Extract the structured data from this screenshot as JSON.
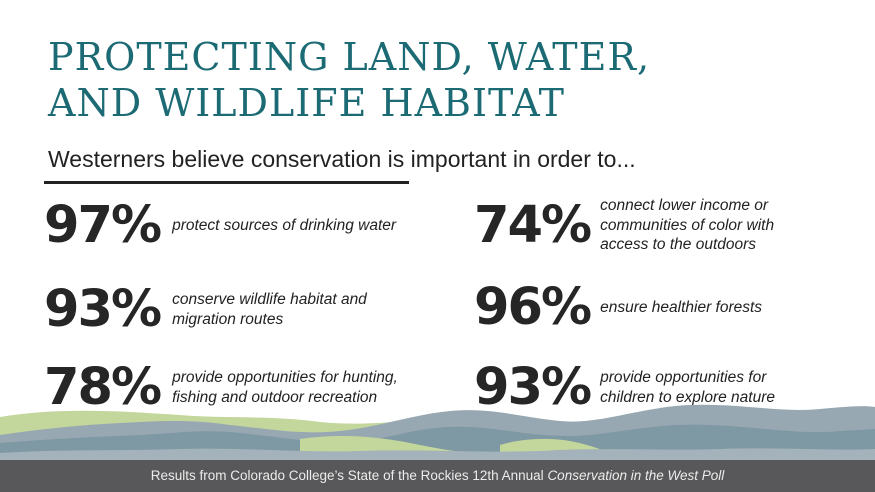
{
  "title": {
    "line1": "PROTECTING LAND, WATER,",
    "line2": "AND WILDLIFE HABITAT"
  },
  "subtitle": "Westerners believe conservation is important in order to...",
  "stats": [
    {
      "percent": "97%",
      "lines": [
        "protect sources of drinking water"
      ]
    },
    {
      "percent": "93%",
      "lines": [
        "conserve wildlife habitat and",
        "migration routes"
      ]
    },
    {
      "percent": "78%",
      "lines": [
        "provide opportunities for hunting,",
        "fishing and outdoor recreation"
      ]
    },
    {
      "percent": "74%",
      "lines": [
        "connect lower income or",
        "communities of color with",
        "access to the outdoors"
      ]
    },
    {
      "percent": "96%",
      "lines": [
        "ensure healthier forests"
      ]
    },
    {
      "percent": "93%",
      "lines": [
        "provide opportunities for",
        "children to explore nature"
      ]
    }
  ],
  "footer": {
    "text": "Results from Colorado College’s State of the Rockies 12th Annual ",
    "emphasis": "Conservation in the West Poll"
  },
  "colors": {
    "title": "#1c6b74",
    "text": "#222222",
    "footer_bg": "#58585a",
    "mountain_green": "#c3d69b",
    "mountain_blue": "#7e98a4",
    "mountain_slate": "#98a8b2"
  }
}
